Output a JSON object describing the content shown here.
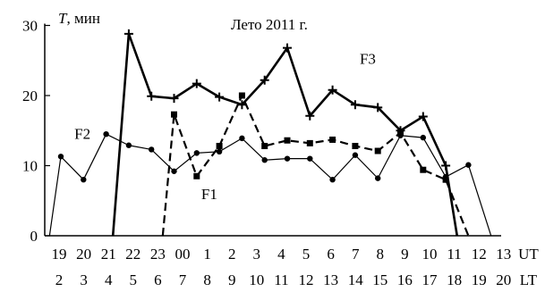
{
  "chart_data": {
    "type": "line",
    "title": "Лето 2011 г.",
    "ylabel_symbol": "T",
    "ylabel_unit": ", мин",
    "ylim": [
      0,
      30
    ],
    "yticks": [
      "0",
      "10",
      "20",
      "30"
    ],
    "x": [
      -0.5,
      0,
      1,
      2,
      3,
      4,
      4.5,
      5,
      6,
      7,
      8,
      9,
      10,
      11,
      12,
      13,
      14,
      15,
      16,
      17,
      18,
      19,
      19.5,
      20,
      21,
      22,
      23
    ],
    "x_ut_labels": [
      "19",
      "20",
      "21",
      "22",
      "23",
      "00",
      "1",
      "2",
      "3",
      "4",
      "5",
      "6",
      "7",
      "8",
      "9",
      "10",
      "11",
      "12",
      "13",
      "UT"
    ],
    "x_lt_labels": [
      "2",
      "3",
      "4",
      "5",
      "6",
      "7",
      "8",
      "9",
      "10",
      "11",
      "12",
      "13",
      "14",
      "15",
      "16",
      "17",
      "18",
      "19",
      "20",
      "LT"
    ],
    "grid": false,
    "series": [
      {
        "name": "F1",
        "style": "dashed",
        "marker": "square",
        "color": "#000000",
        "points": [
          [
            4.5,
            0
          ],
          [
            5,
            17.3
          ],
          [
            6,
            8.5
          ],
          [
            7,
            12.8
          ],
          [
            8,
            20
          ],
          [
            9,
            12.8
          ],
          [
            10,
            13.6
          ],
          [
            11,
            13.2
          ],
          [
            12,
            13.7
          ],
          [
            13,
            12.8
          ],
          [
            14,
            12.1
          ],
          [
            15,
            14.7
          ],
          [
            16,
            9.4
          ],
          [
            17,
            8
          ],
          [
            18,
            0
          ]
        ]
      },
      {
        "name": "F2",
        "style": "solid-thin",
        "marker": "circle",
        "color": "#000000",
        "points": [
          [
            -0.5,
            0
          ],
          [
            0,
            11.3
          ],
          [
            1,
            8
          ],
          [
            2,
            14.5
          ],
          [
            3,
            12.9
          ],
          [
            4,
            12.3
          ],
          [
            5,
            9.2
          ],
          [
            6,
            11.8
          ],
          [
            7,
            12
          ],
          [
            8,
            13.9
          ],
          [
            9,
            10.8
          ],
          [
            10,
            11
          ],
          [
            11,
            11
          ],
          [
            12,
            8
          ],
          [
            13,
            11.5
          ],
          [
            14,
            8.2
          ],
          [
            15,
            14.3
          ],
          [
            16,
            14
          ],
          [
            17,
            8.4
          ],
          [
            18,
            10.1
          ],
          [
            19,
            0
          ]
        ]
      },
      {
        "name": "F3",
        "style": "solid-thick",
        "marker": "cross",
        "color": "#000000",
        "points": [
          [
            2.3,
            0
          ],
          [
            3,
            28.8
          ],
          [
            4,
            19.9
          ],
          [
            5,
            19.6
          ],
          [
            6,
            21.7
          ],
          [
            7,
            19.8
          ],
          [
            8,
            18.7
          ],
          [
            9,
            22.2
          ],
          [
            10,
            26.8
          ],
          [
            11,
            17.1
          ],
          [
            12,
            20.8
          ],
          [
            13,
            18.7
          ],
          [
            14,
            18.3
          ],
          [
            15,
            15
          ],
          [
            16,
            17
          ],
          [
            17,
            10
          ],
          [
            17.5,
            0
          ]
        ]
      }
    ],
    "series_labels": [
      {
        "text": "F1",
        "at": [
          6.2,
          5.2
        ]
      },
      {
        "text": "F2",
        "at": [
          0.6,
          13.8
        ]
      },
      {
        "text": "F3",
        "at": [
          13.2,
          24.5
        ]
      }
    ]
  }
}
